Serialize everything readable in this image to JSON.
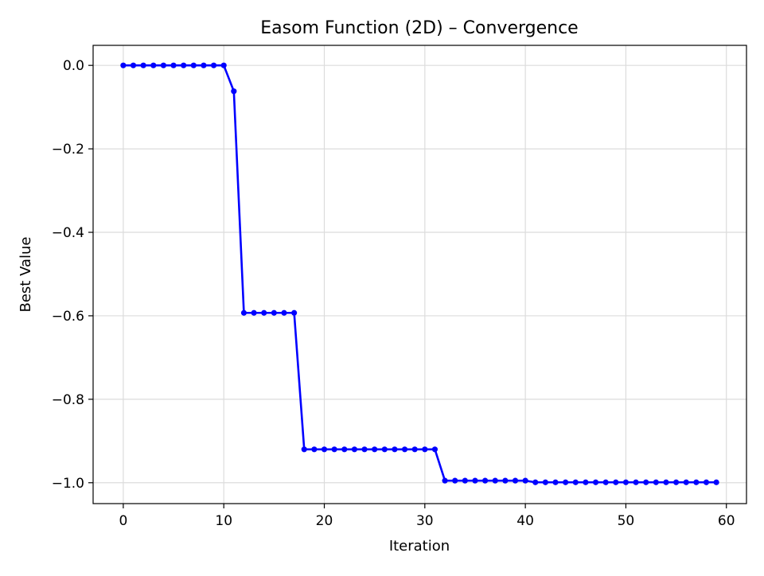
{
  "chart_data": {
    "type": "line",
    "title": "Easom Function (2D) – Convergence",
    "xlabel": "Iteration",
    "ylabel": "Best Value",
    "xlim": [
      -3,
      62
    ],
    "ylim": [
      -1.05,
      0.048
    ],
    "xticks": [
      0,
      10,
      20,
      30,
      40,
      50,
      60
    ],
    "xtick_labels": [
      "0",
      "10",
      "20",
      "30",
      "40",
      "50",
      "60"
    ],
    "yticks": [
      0.0,
      -0.2,
      -0.4,
      -0.6,
      -0.8,
      -1.0
    ],
    "ytick_labels": [
      "0.0",
      "−0.2",
      "−0.4",
      "−0.6",
      "−0.8",
      "−1.0"
    ],
    "grid": true,
    "series": [
      {
        "color": "#0000ff",
        "marker": "circle",
        "x": [
          0,
          1,
          2,
          3,
          4,
          5,
          6,
          7,
          8,
          9,
          10,
          11,
          12,
          13,
          14,
          15,
          16,
          17,
          18,
          19,
          20,
          21,
          22,
          23,
          24,
          25,
          26,
          27,
          28,
          29,
          30,
          31,
          32,
          33,
          34,
          35,
          36,
          37,
          38,
          39,
          40,
          41,
          42,
          43,
          44,
          45,
          46,
          47,
          48,
          49,
          50,
          51,
          52,
          53,
          54,
          55,
          56,
          57,
          58,
          59
        ],
        "y": [
          0,
          0,
          0,
          0,
          0,
          0,
          0,
          0,
          0,
          0,
          0,
          -0.062,
          -0.593,
          -0.593,
          -0.593,
          -0.593,
          -0.593,
          -0.593,
          -0.92,
          -0.92,
          -0.92,
          -0.92,
          -0.92,
          -0.92,
          -0.92,
          -0.92,
          -0.92,
          -0.92,
          -0.92,
          -0.92,
          -0.92,
          -0.92,
          -0.995,
          -0.995,
          -0.995,
          -0.995,
          -0.995,
          -0.995,
          -0.995,
          -0.995,
          -0.995,
          -0.999,
          -0.999,
          -0.999,
          -0.999,
          -0.999,
          -0.999,
          -0.999,
          -0.999,
          -0.999,
          -0.999,
          -0.999,
          -0.999,
          -0.999,
          -0.999,
          -0.999,
          -0.999,
          -0.999,
          -0.999,
          -0.999
        ]
      }
    ]
  }
}
